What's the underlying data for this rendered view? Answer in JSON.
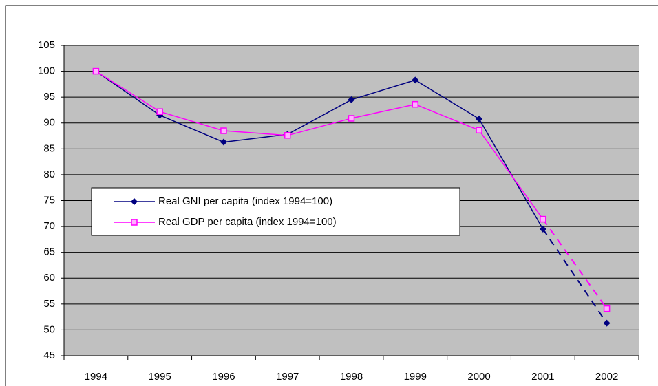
{
  "chart_data": {
    "type": "line",
    "categories": [
      "1994",
      "1995",
      "1996",
      "1997",
      "1998",
      "1999",
      "2000",
      "2001",
      "2002"
    ],
    "series": [
      {
        "name": "Real GNI per capita (index 1994=100)",
        "color": "#000080",
        "marker": "diamond",
        "values": [
          100,
          91.5,
          86.3,
          87.8,
          94.5,
          98.3,
          90.8,
          69.5,
          51.3
        ]
      },
      {
        "name": "Real GDP per capita (index 1994=100)",
        "color": "#ff00ff",
        "marker": "square",
        "values": [
          100,
          92.2,
          88.5,
          87.6,
          90.9,
          93.6,
          88.6,
          71.4,
          54.1
        ]
      }
    ],
    "ylim": [
      45,
      105
    ],
    "yticks": [
      45,
      50,
      55,
      60,
      65,
      70,
      75,
      80,
      85,
      90,
      95,
      100,
      105
    ],
    "grid": true,
    "dashed_last_segment": true,
    "legend": "center-left"
  }
}
